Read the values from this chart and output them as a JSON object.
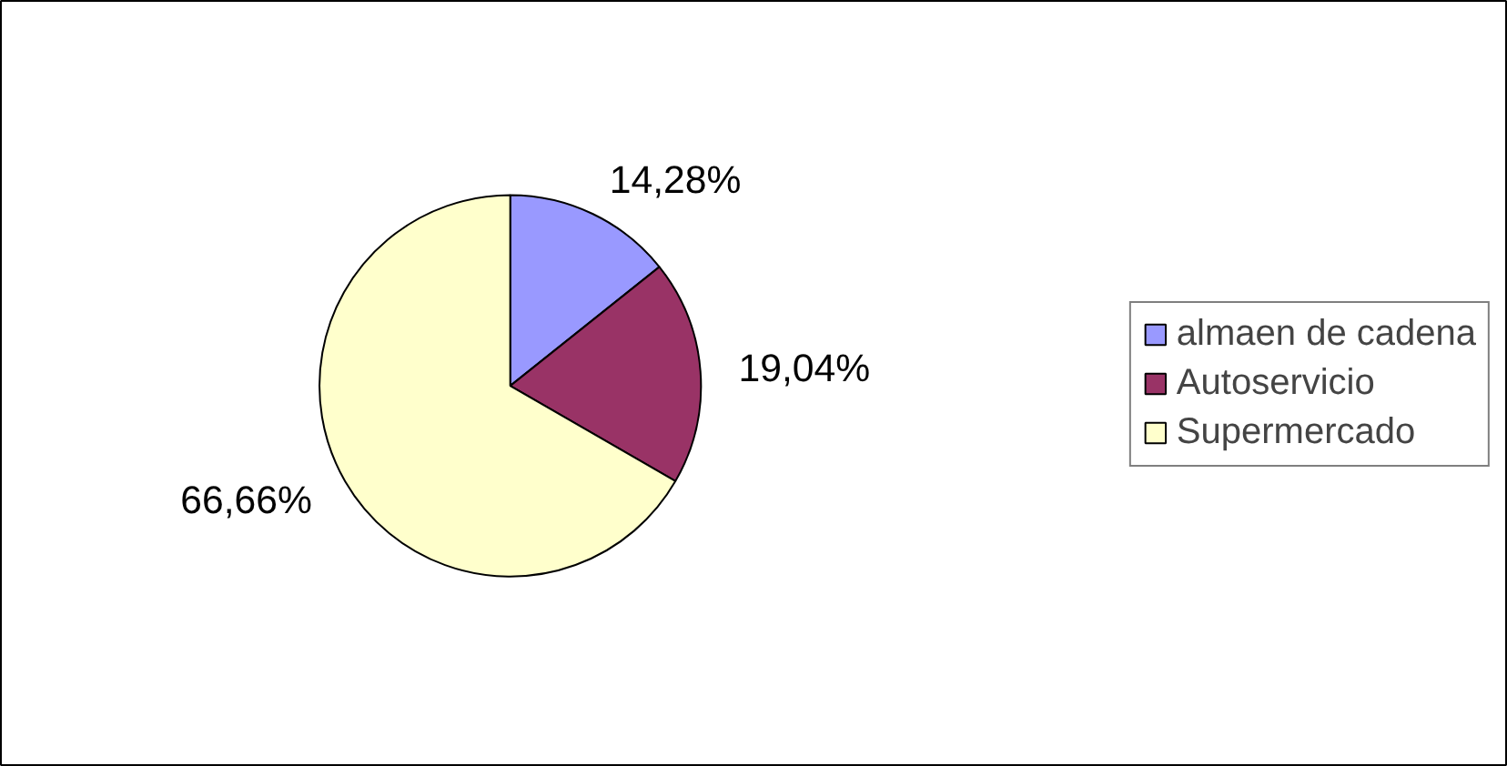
{
  "chart_data": {
    "type": "pie",
    "categories": [
      "almaen de cadena",
      "Autoservicio",
      "Supermercado"
    ],
    "values": [
      14.28,
      19.04,
      66.66
    ],
    "colors": [
      "#9999ff",
      "#993366",
      "#ffffcc"
    ],
    "value_labels": [
      "14,28%",
      "19,04%",
      "66,66%"
    ],
    "legend": "right"
  }
}
